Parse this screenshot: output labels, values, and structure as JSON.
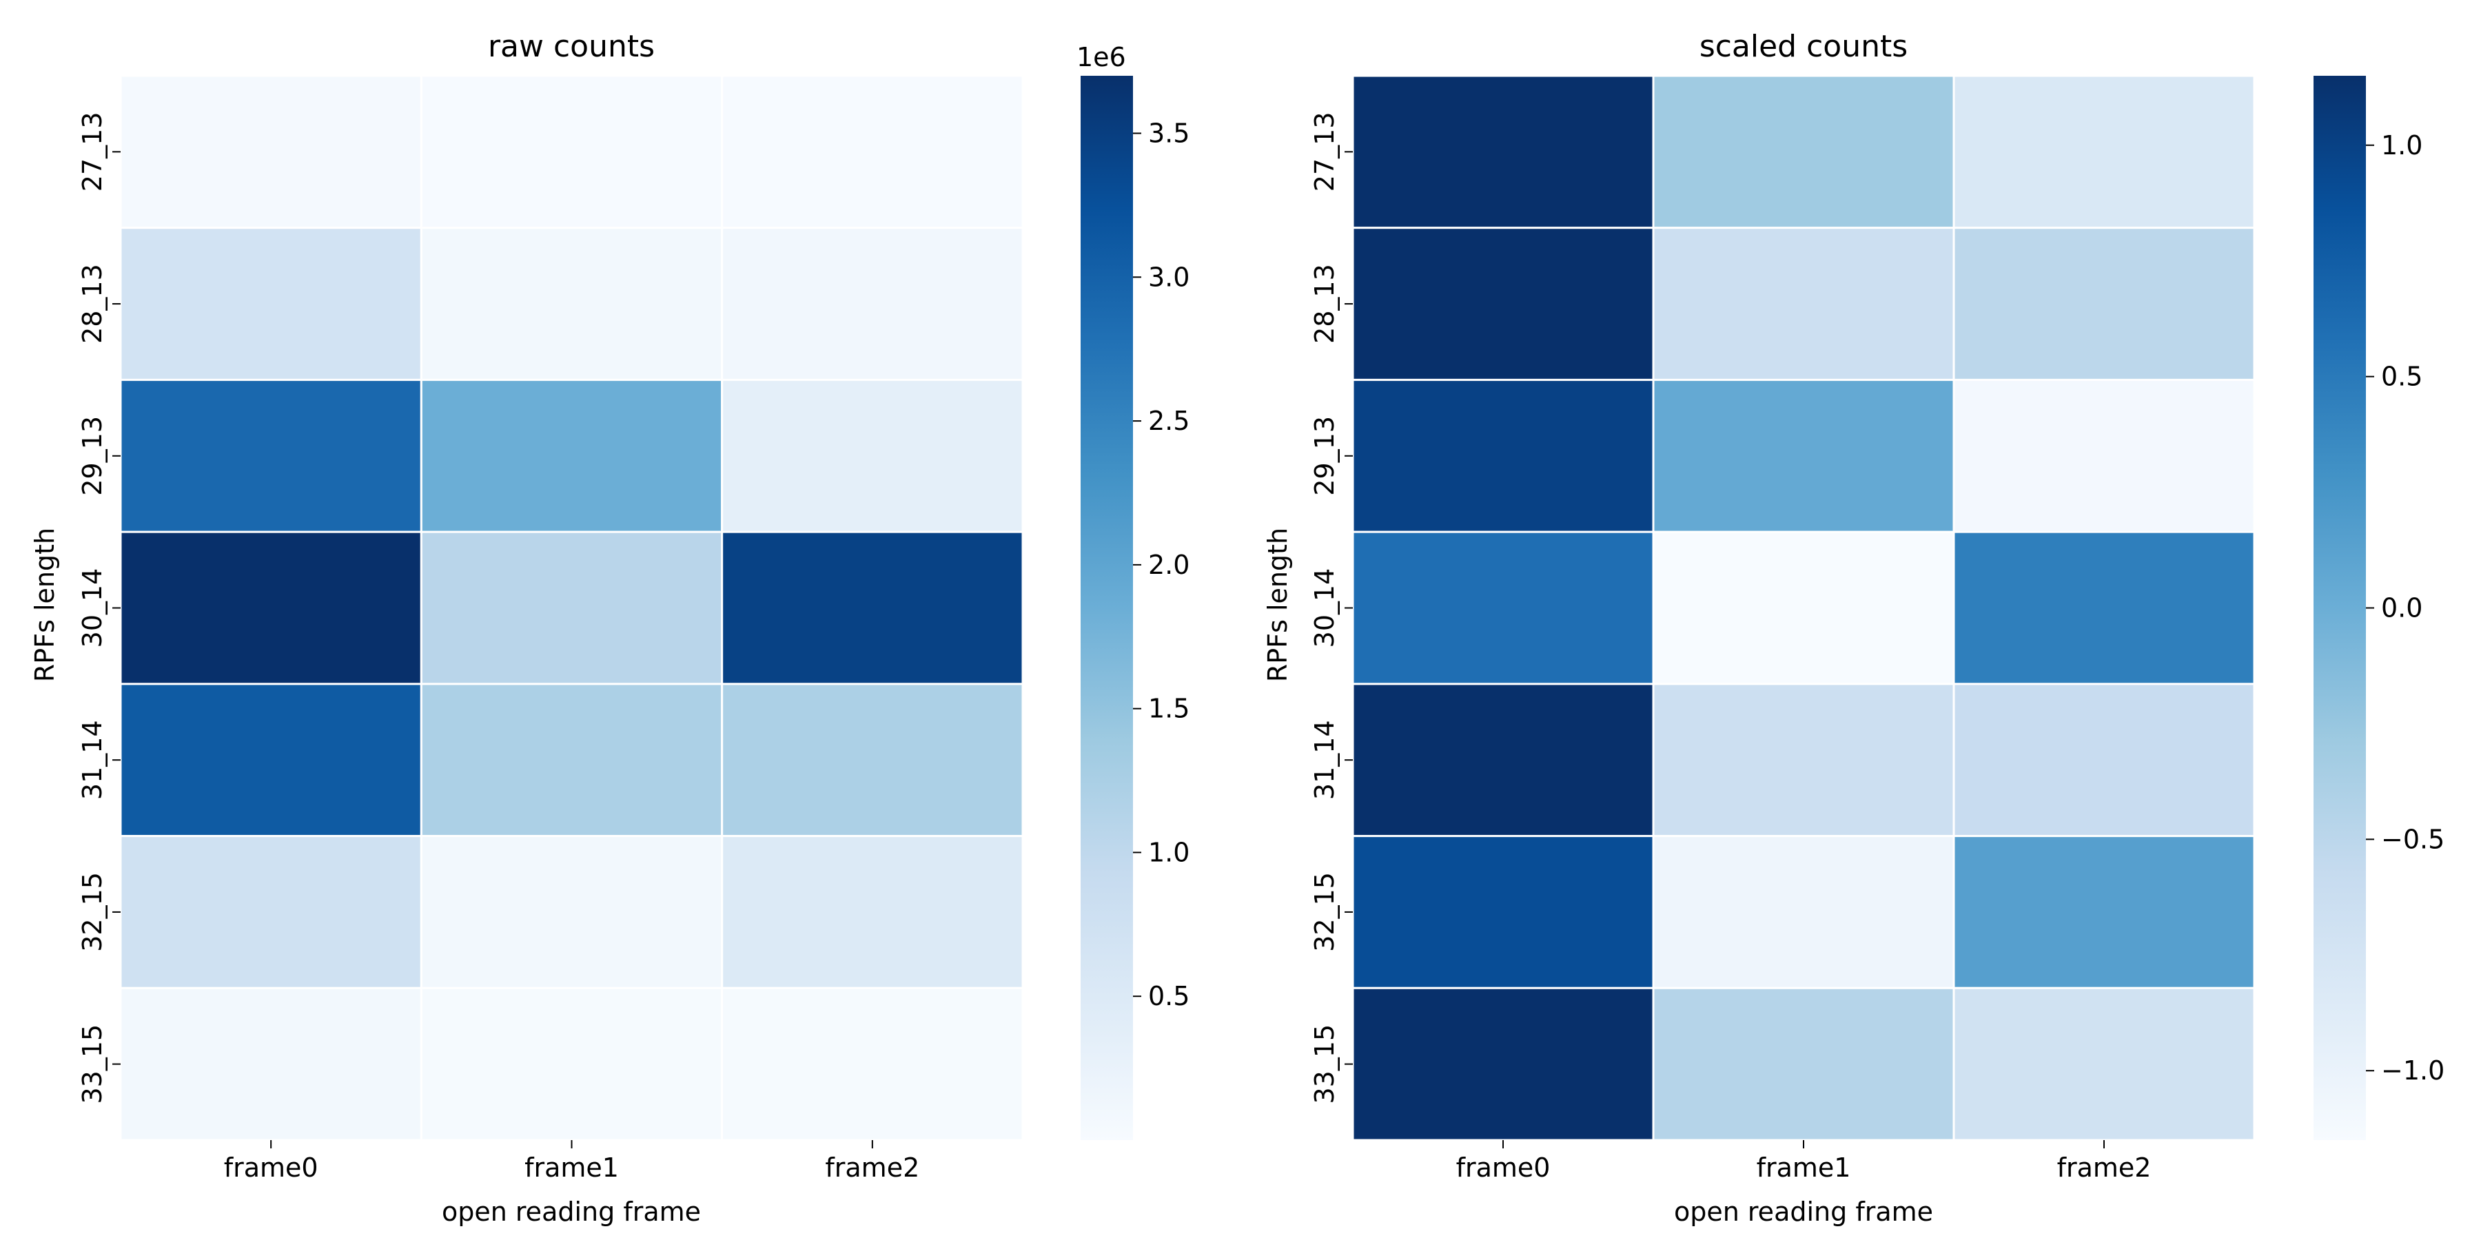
{
  "chart_data": [
    {
      "type": "heatmap",
      "title": "raw counts",
      "xlabel": "open reading frame",
      "ylabel": "RPFs length",
      "x_categories": [
        "frame0",
        "frame1",
        "frame2"
      ],
      "y_categories": [
        "27_13",
        "28_13",
        "29_13",
        "30_14",
        "31_14",
        "32_15",
        "33_15"
      ],
      "values": [
        [
          60000,
          20000,
          15000
        ],
        [
          700000,
          100000,
          110000
        ],
        [
          2900000,
          1850000,
          360000
        ],
        [
          3700000,
          1080000,
          3450000
        ],
        [
          3100000,
          1220000,
          1230000
        ],
        [
          750000,
          90000,
          500000
        ],
        [
          90000,
          30000,
          30000
        ]
      ],
      "colorbar": {
        "vmin": 0,
        "vmax": 3700000,
        "ticks": [
          500000,
          1000000,
          1500000,
          2000000,
          2500000,
          3000000,
          3500000
        ],
        "tick_labels": [
          "0.5",
          "1.0",
          "1.5",
          "2.0",
          "2.5",
          "3.0",
          "3.5"
        ],
        "offset_label": "1e6"
      },
      "colormap": "Blues"
    },
    {
      "type": "heatmap",
      "title": "scaled counts",
      "xlabel": "open reading frame",
      "ylabel": "RPFs length",
      "x_categories": [
        "frame0",
        "frame1",
        "frame2"
      ],
      "y_categories": [
        "27_13",
        "28_13",
        "29_13",
        "30_14",
        "31_14",
        "32_15",
        "33_15"
      ],
      "values": [
        [
          1.15,
          -0.3,
          -0.8
        ],
        [
          1.15,
          -0.65,
          -0.5
        ],
        [
          1.0,
          0.05,
          -1.1
        ],
        [
          0.6,
          -1.15,
          0.45
        ],
        [
          1.15,
          -0.65,
          -0.6
        ],
        [
          0.9,
          -1.05,
          0.15
        ],
        [
          1.15,
          -0.45,
          -0.7
        ]
      ],
      "colorbar": {
        "vmin": -1.15,
        "vmax": 1.15,
        "ticks": [
          -1.0,
          -0.5,
          0.0,
          0.5,
          1.0
        ],
        "tick_labels": [
          "−1.0",
          "−0.5",
          "0.0",
          "0.5",
          "1.0"
        ]
      },
      "colormap": "Blues"
    }
  ]
}
